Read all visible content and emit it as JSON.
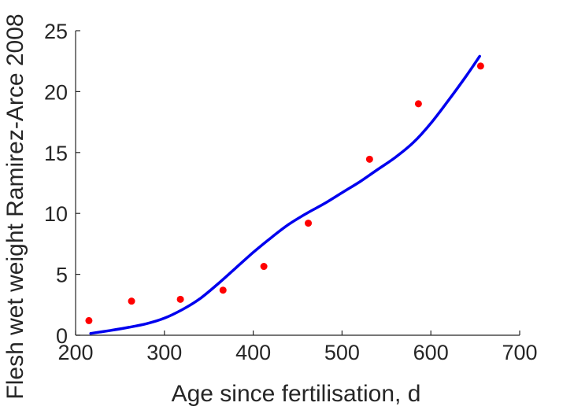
{
  "chart_data": {
    "type": "scatter",
    "xlabel": "Age since fertilisation, d",
    "ylabel": "Flesh wet weight Ramirez-Arce 2008",
    "xlim": [
      200,
      700
    ],
    "ylim": [
      0,
      25
    ],
    "xticks": [
      "200",
      "300",
      "400",
      "500",
      "600",
      "700"
    ],
    "yticks": [
      "0",
      "5",
      "10",
      "15",
      "20",
      "25"
    ],
    "grid": false,
    "colors": {
      "points": "#ff0000",
      "curve": "#0000ee",
      "axis": "#262626"
    },
    "series": [
      {
        "kind": "points",
        "x": [
          215,
          263,
          318,
          366,
          412,
          462,
          531,
          586,
          656
        ],
        "y": [
          1.2,
          2.8,
          2.95,
          3.7,
          5.65,
          9.2,
          14.45,
          19.0,
          22.1
        ]
      },
      {
        "kind": "line",
        "x": [
          217,
          240,
          260,
          280,
          300,
          320,
          340,
          360,
          380,
          400,
          420,
          440,
          460,
          480,
          500,
          520,
          540,
          560,
          580,
          600,
          620,
          640,
          655
        ],
        "y": [
          0.15,
          0.4,
          0.65,
          0.95,
          1.4,
          2.1,
          3.0,
          4.2,
          5.5,
          6.8,
          8.0,
          9.1,
          10.0,
          10.8,
          11.7,
          12.6,
          13.6,
          14.6,
          15.8,
          17.4,
          19.3,
          21.3,
          22.9
        ]
      }
    ]
  }
}
